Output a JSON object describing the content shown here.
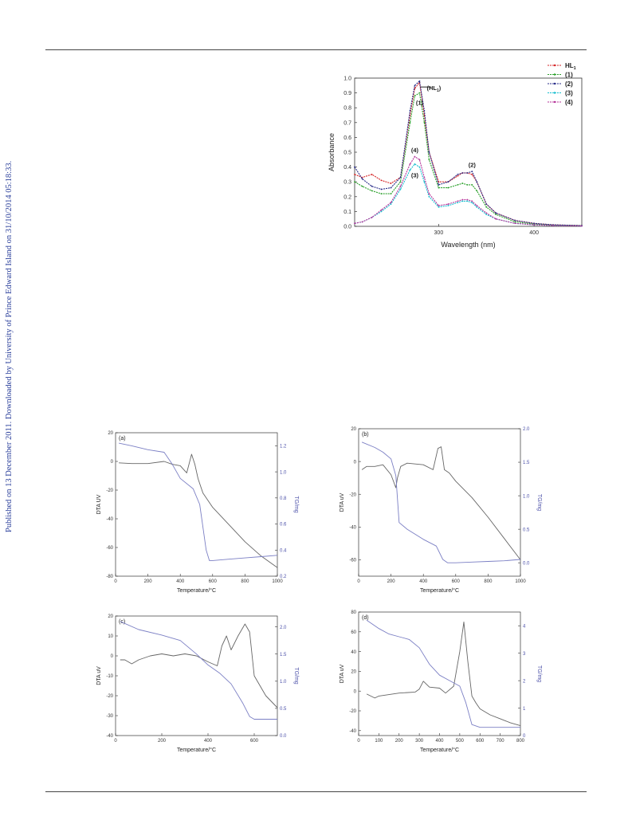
{
  "sidebar_note": "Published on 13 December 2011. Downloaded by University of Prince Edward Island on 31/10/2014 05:18:33.",
  "uv_chart": {
    "chart_data": {
      "type": "line",
      "xlabel": "Wavelength (nm)",
      "ylabel": "Absorbance",
      "xlim": [
        212,
        450
      ],
      "ylim": [
        0,
        1.0
      ],
      "xticks": [
        300,
        400
      ],
      "yticks": [
        "0.0",
        "0.1",
        "0.2",
        "0.3",
        "0.4",
        "0.5",
        "0.6",
        "0.7",
        "0.8",
        "0.9",
        "1.0"
      ],
      "legend": {
        "placement": "top-right",
        "entries": [
          "HL1",
          "(1)",
          "(2)",
          "(3)",
          "(4)"
        ]
      },
      "series": [
        {
          "name": "HL1",
          "color": "#d62728",
          "x": [
            212,
            220,
            230,
            240,
            250,
            260,
            270,
            275,
            280,
            285,
            290,
            300,
            310,
            320,
            325,
            330,
            335,
            340,
            350,
            360,
            380,
            400,
            420,
            450
          ],
          "y": [
            0.35,
            0.33,
            0.35,
            0.31,
            0.29,
            0.33,
            0.75,
            0.93,
            0.97,
            0.75,
            0.5,
            0.3,
            0.3,
            0.34,
            0.36,
            0.36,
            0.35,
            0.3,
            0.15,
            0.09,
            0.04,
            0.02,
            0.01,
            0.005
          ]
        },
        {
          "name": "(1)",
          "color": "#2ca02c",
          "x": [
            212,
            220,
            230,
            240,
            250,
            260,
            270,
            275,
            280,
            285,
            290,
            300,
            310,
            320,
            325,
            330,
            335,
            340,
            350,
            360,
            380,
            400,
            420,
            450
          ],
          "y": [
            0.3,
            0.27,
            0.24,
            0.22,
            0.22,
            0.3,
            0.7,
            0.88,
            0.9,
            0.7,
            0.45,
            0.26,
            0.26,
            0.28,
            0.29,
            0.28,
            0.28,
            0.24,
            0.13,
            0.08,
            0.03,
            0.015,
            0.008,
            0.004
          ]
        },
        {
          "name": "(2)",
          "color": "#2a2e8a",
          "x": [
            212,
            220,
            230,
            240,
            250,
            260,
            270,
            275,
            280,
            285,
            290,
            300,
            310,
            320,
            325,
            330,
            335,
            340,
            350,
            360,
            380,
            400,
            420,
            450
          ],
          "y": [
            0.4,
            0.32,
            0.27,
            0.25,
            0.26,
            0.33,
            0.78,
            0.95,
            0.98,
            0.78,
            0.5,
            0.28,
            0.3,
            0.35,
            0.36,
            0.36,
            0.37,
            0.3,
            0.15,
            0.09,
            0.04,
            0.02,
            0.01,
            0.005
          ]
        },
        {
          "name": "(3)",
          "color": "#17becf",
          "x": [
            212,
            220,
            230,
            240,
            250,
            260,
            270,
            275,
            280,
            285,
            290,
            300,
            310,
            320,
            325,
            330,
            335,
            340,
            350,
            360,
            380,
            400,
            420,
            450
          ],
          "y": [
            0.02,
            0.03,
            0.06,
            0.1,
            0.15,
            0.25,
            0.38,
            0.42,
            0.4,
            0.3,
            0.2,
            0.13,
            0.14,
            0.16,
            0.17,
            0.17,
            0.16,
            0.13,
            0.08,
            0.05,
            0.02,
            0.01,
            0.005,
            0.002
          ]
        },
        {
          "name": "(4)",
          "color": "#b5349a",
          "x": [
            212,
            220,
            230,
            240,
            250,
            260,
            270,
            275,
            280,
            285,
            290,
            300,
            310,
            320,
            325,
            330,
            335,
            340,
            350,
            360,
            380,
            400,
            420,
            450
          ],
          "y": [
            0.02,
            0.03,
            0.06,
            0.11,
            0.16,
            0.27,
            0.42,
            0.47,
            0.45,
            0.33,
            0.22,
            0.14,
            0.15,
            0.17,
            0.18,
            0.18,
            0.17,
            0.14,
            0.09,
            0.05,
            0.02,
            0.01,
            0.005,
            0.002
          ]
        }
      ],
      "annotations": [
        "(HL1)",
        "(1)",
        "(4)",
        "(3)",
        "(2)"
      ]
    }
  },
  "thermal_charts": {
    "chart_data": [
      {
        "type": "line",
        "panel": "(a)",
        "xlabel": "Temperature/°C",
        "ylabel": "DTA UV",
        "y2label": "TG/mg",
        "xlim": [
          0,
          1000
        ],
        "ylim": [
          -80,
          20
        ],
        "y2lim": [
          0.2,
          1.3
        ],
        "xticks": [
          "0",
          "200",
          "400",
          "600",
          "800",
          "1000"
        ],
        "yticks": [
          "20",
          "0",
          "-20",
          "-40",
          "-60",
          "-80"
        ],
        "y2ticks": [
          "1.2",
          "1.0",
          "0.8",
          "0.6",
          "0.4",
          "0.2"
        ],
        "series": [
          {
            "name": "DTA",
            "axis": "left",
            "color": "#666666",
            "x": [
              20,
              100,
              200,
              300,
              350,
              400,
              440,
              470,
              490,
              510,
              540,
              600,
              700,
              800,
              900,
              1000
            ],
            "y": [
              -1,
              -1.5,
              -1.5,
              0,
              -2,
              -3,
              -8,
              5,
              -2,
              -12,
              -22,
              -32,
              -44,
              -56,
              -66,
              -74
            ]
          },
          {
            "name": "TG",
            "axis": "right",
            "color": "#7b7fc4",
            "x": [
              20,
              100,
              200,
              300,
              350,
              400,
              480,
              520,
              560,
              580,
              600,
              700,
              800,
              900,
              1000
            ],
            "y": [
              1.22,
              1.2,
              1.17,
              1.15,
              1.06,
              0.95,
              0.87,
              0.75,
              0.4,
              0.32,
              0.32,
              0.33,
              0.34,
              0.35,
              0.36
            ]
          }
        ]
      },
      {
        "type": "line",
        "panel": "(b)",
        "xlabel": "Temperature/°C",
        "ylabel": "DTA uV",
        "y2label": "TG/mg",
        "xlim": [
          0,
          1000
        ],
        "ylim": [
          -70,
          20
        ],
        "y2lim": [
          -0.2,
          2.0
        ],
        "xticks": [
          "0",
          "200",
          "400",
          "600",
          "800",
          "1000"
        ],
        "yticks": [
          "20",
          "0",
          "-20",
          "-40",
          "-60"
        ],
        "y2ticks": [
          "2.0",
          "1.5",
          "1.0",
          "0.5",
          "0.0"
        ],
        "series": [
          {
            "name": "DTA",
            "axis": "left",
            "color": "#666666",
            "x": [
              20,
              50,
              100,
              150,
              200,
              230,
              240,
              260,
              300,
              400,
              460,
              490,
              510,
              530,
              560,
              600,
              700,
              800,
              900,
              1000
            ],
            "y": [
              -5,
              -3,
              -3,
              -2,
              -8,
              -16,
              -10,
              -3,
              -1,
              -2,
              -5,
              8,
              9,
              -5,
              -7,
              -12,
              -22,
              -34,
              -47,
              -60
            ]
          },
          {
            "name": "TG",
            "axis": "right",
            "color": "#7b7fc4",
            "x": [
              20,
              100,
              150,
              200,
              230,
              250,
              300,
              400,
              480,
              520,
              550,
              600,
              700,
              800,
              900,
              1000
            ],
            "y": [
              1.8,
              1.72,
              1.65,
              1.55,
              1.3,
              0.6,
              0.5,
              0.35,
              0.25,
              0.05,
              0.0,
              0.0,
              0.01,
              0.02,
              0.03,
              0.05
            ]
          }
        ]
      },
      {
        "type": "line",
        "panel": "(c)",
        "xlabel": "Temperature/°C",
        "ylabel": "DTA uV",
        "y2label": "TG/mg",
        "xlim": [
          0,
          700
        ],
        "ylim": [
          -40,
          20
        ],
        "y2lim": [
          0.0,
          2.2
        ],
        "xticks": [
          "0",
          "200",
          "400",
          "600"
        ],
        "yticks": [
          "20",
          "10",
          "0",
          "-10",
          "-20",
          "-30",
          "-40"
        ],
        "y2ticks": [
          "2.0",
          "1.5",
          "1.0",
          "0.5",
          "0.0"
        ],
        "series": [
          {
            "name": "DTA",
            "axis": "left",
            "color": "#666666",
            "x": [
              20,
              40,
              70,
              100,
              150,
              200,
              250,
              300,
              350,
              400,
              440,
              460,
              480,
              500,
              530,
              560,
              580,
              600,
              650,
              700
            ],
            "y": [
              -2,
              -2,
              -4,
              -2,
              0,
              1,
              0,
              1,
              0,
              -3,
              -5,
              5,
              10,
              3,
              10,
              16,
              12,
              -10,
              -20,
              -26
            ]
          },
          {
            "name": "TG",
            "axis": "right",
            "color": "#7b7fc4",
            "x": [
              20,
              100,
              200,
              280,
              350,
              400,
              450,
              500,
              550,
              580,
              600,
              650,
              700
            ],
            "y": [
              2.1,
              1.95,
              1.85,
              1.75,
              1.5,
              1.3,
              1.15,
              0.95,
              0.6,
              0.35,
              0.3,
              0.3,
              0.3
            ]
          }
        ]
      },
      {
        "type": "line",
        "panel": "(d)",
        "xlabel": "Temperature/°C",
        "ylabel": "DTA uV",
        "y2label": "TG/mg",
        "xlim": [
          0,
          800
        ],
        "ylim": [
          -45,
          80
        ],
        "y2lim": [
          0,
          4.5
        ],
        "xticks": [
          "0",
          "100",
          "200",
          "300",
          "400",
          "500",
          "600",
          "700",
          "800"
        ],
        "yticks": [
          "80",
          "60",
          "40",
          "20",
          "0",
          "-20",
          "-40"
        ],
        "y2ticks": [
          "4",
          "3",
          "2",
          "1",
          "0"
        ],
        "series": [
          {
            "name": "DTA",
            "axis": "left",
            "color": "#666666",
            "x": [
              40,
              60,
              80,
              100,
              200,
              280,
              300,
              320,
              350,
              400,
              430,
              470,
              500,
              520,
              540,
              560,
              580,
              600,
              650,
              700,
              750,
              800
            ],
            "y": [
              -3,
              -5,
              -7,
              -5,
              -2,
              -1,
              2,
              10,
              4,
              3,
              -2,
              5,
              40,
              70,
              30,
              -5,
              -12,
              -18,
              -24,
              -28,
              -32,
              -35
            ]
          },
          {
            "name": "TG",
            "axis": "right",
            "color": "#7b7fc4",
            "x": [
              40,
              100,
              150,
              200,
              250,
              300,
              350,
              400,
              450,
              500,
              530,
              560,
              600,
              700,
              800
            ],
            "y": [
              4.2,
              3.9,
              3.7,
              3.6,
              3.5,
              3.2,
              2.6,
              2.2,
              2.0,
              1.8,
              1.2,
              0.4,
              0.3,
              0.3,
              0.3
            ]
          }
        ]
      }
    ]
  }
}
